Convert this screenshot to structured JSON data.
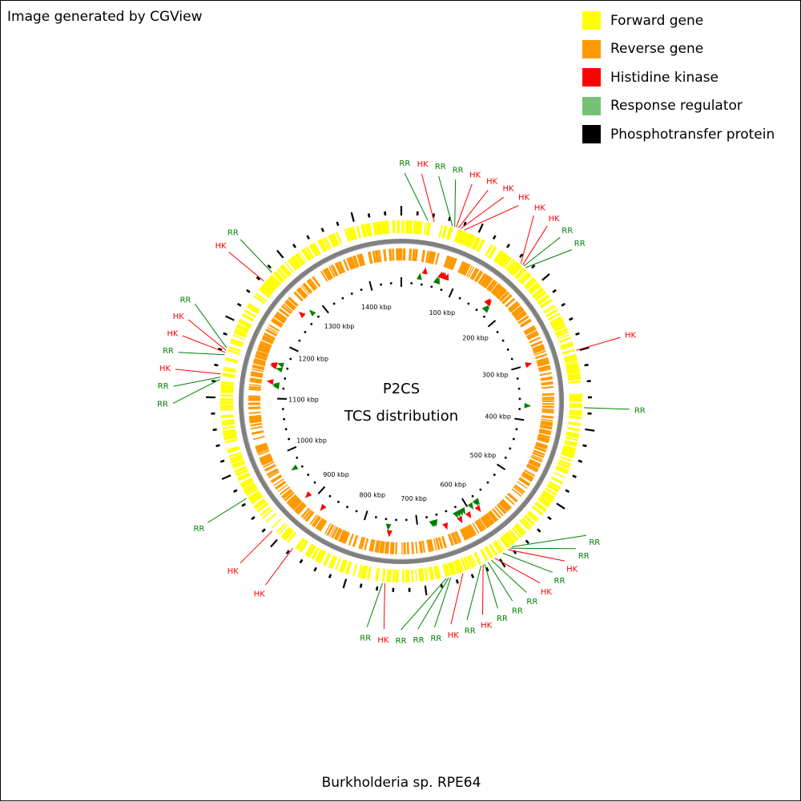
{
  "credit": "Image generated by CGView",
  "caption": "Burkholderia sp. RPE64",
  "center": {
    "title": "P2CS",
    "subtitle": "TCS distribution"
  },
  "legend": [
    {
      "label": "Forward gene",
      "color": "#ffff00"
    },
    {
      "label": "Reverse gene",
      "color": "#ff9900"
    },
    {
      "label": "Histidine kinase",
      "color": "#ff0000"
    },
    {
      "label": "Response regulator",
      "color": "#77c177"
    },
    {
      "label": "Phosphotransfer protein",
      "color": "#000000"
    }
  ],
  "colors": {
    "forward": "#ffff00",
    "reverse": "#ff9900",
    "hk": "#ff0000",
    "rr": "#008000",
    "backbone": "#808080"
  },
  "genome": {
    "length_kbp": 1460,
    "scale_labels": [
      "100 kbp",
      "200 kbp",
      "300 kbp",
      "400 kbp",
      "500 kbp",
      "600 kbp",
      "700 kbp",
      "800 kbp",
      "900 kbp",
      "1000 kbp",
      "1100 kbp",
      "1200 kbp",
      "1300 kbp",
      "1400 kbp"
    ]
  },
  "features": [
    {
      "label": "RR",
      "type": "RR",
      "pos_kbp": 34
    },
    {
      "label": "HK",
      "type": "HK",
      "pos_kbp": 42
    },
    {
      "label": "RR",
      "type": "RR",
      "pos_kbp": 66
    },
    {
      "label": "RR",
      "type": "RR",
      "pos_kbp": 69
    },
    {
      "label": "HK",
      "type": "HK",
      "pos_kbp": 71
    },
    {
      "label": "HK",
      "type": "HK",
      "pos_kbp": 74
    },
    {
      "label": "HK",
      "type": "HK",
      "pos_kbp": 77
    },
    {
      "label": "HK",
      "type": "HK",
      "pos_kbp": 82
    },
    {
      "label": "HK",
      "type": "HK",
      "pos_kbp": 166
    },
    {
      "label": "HK",
      "type": "HK",
      "pos_kbp": 169
    },
    {
      "label": "RR",
      "type": "RR",
      "pos_kbp": 171
    },
    {
      "label": "RR",
      "type": "RR",
      "pos_kbp": 174
    },
    {
      "label": "HK",
      "type": "HK",
      "pos_kbp": 299
    },
    {
      "label": "RR",
      "type": "RR",
      "pos_kbp": 373
    },
    {
      "label": "RR",
      "type": "RR",
      "pos_kbp": 579
    },
    {
      "label": "RR",
      "type": "RR",
      "pos_kbp": 582
    },
    {
      "label": "HK",
      "type": "HK",
      "pos_kbp": 585
    },
    {
      "label": "RR",
      "type": "RR",
      "pos_kbp": 593
    },
    {
      "label": "HK",
      "type": "HK",
      "pos_kbp": 605
    },
    {
      "label": "RR",
      "type": "RR",
      "pos_kbp": 610
    },
    {
      "label": "RR",
      "type": "RR",
      "pos_kbp": 615
    },
    {
      "label": "RR",
      "type": "RR",
      "pos_kbp": 620
    },
    {
      "label": "HK",
      "type": "HK",
      "pos_kbp": 622
    },
    {
      "label": "RR",
      "type": "RR",
      "pos_kbp": 625
    },
    {
      "label": "HK",
      "type": "HK",
      "pos_kbp": 650
    },
    {
      "label": "RR",
      "type": "RR",
      "pos_kbp": 666
    },
    {
      "label": "RR",
      "type": "RR",
      "pos_kbp": 669
    },
    {
      "label": "RR",
      "type": "RR",
      "pos_kbp": 672
    },
    {
      "label": "HK",
      "type": "HK",
      "pos_kbp": 751
    },
    {
      "label": "RR",
      "type": "RR",
      "pos_kbp": 754
    },
    {
      "label": "HK",
      "type": "HK",
      "pos_kbp": 878
    },
    {
      "label": "HK",
      "type": "HK",
      "pos_kbp": 912
    },
    {
      "label": "RR",
      "type": "RR",
      "pos_kbp": 965
    },
    {
      "label": "RR",
      "type": "RR",
      "pos_kbp": 1123
    },
    {
      "label": "RR",
      "type": "RR",
      "pos_kbp": 1126
    },
    {
      "label": "HK",
      "type": "HK",
      "pos_kbp": 1130
    },
    {
      "label": "RR",
      "type": "RR",
      "pos_kbp": 1155
    },
    {
      "label": "HK",
      "type": "HK",
      "pos_kbp": 1158
    },
    {
      "label": "HK",
      "type": "HK",
      "pos_kbp": 1161
    },
    {
      "label": "RR",
      "type": "RR",
      "pos_kbp": 1164
    },
    {
      "label": "HK",
      "type": "HK",
      "pos_kbp": 1262
    },
    {
      "label": "RR",
      "type": "RR",
      "pos_kbp": 1277
    }
  ]
}
